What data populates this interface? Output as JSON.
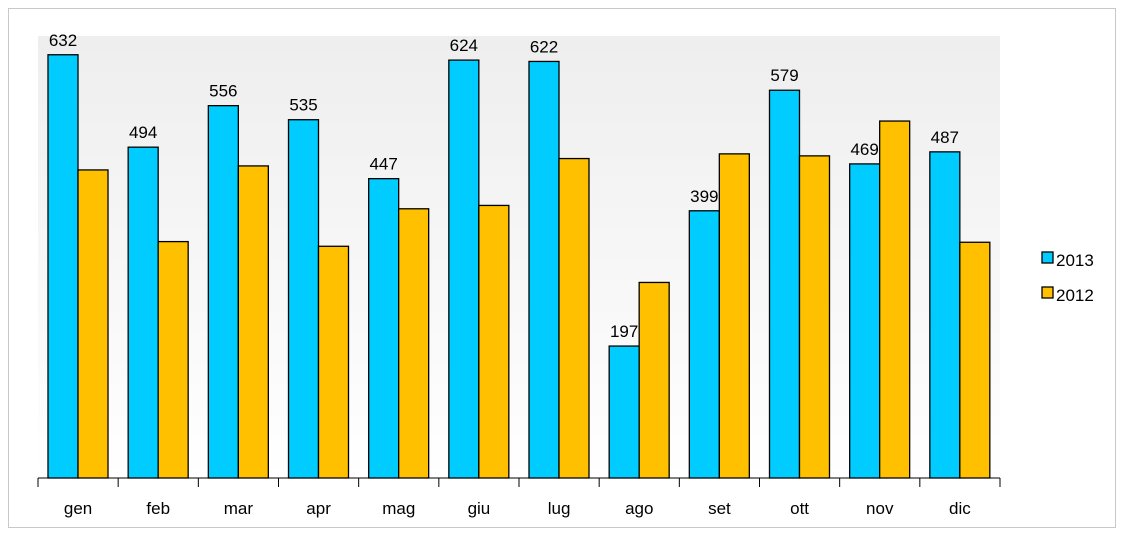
{
  "chart_data": {
    "type": "bar",
    "title": "",
    "xlabel": "",
    "ylabel": "",
    "ylim": [
      0,
      660
    ],
    "grid": false,
    "legend_position": "right",
    "categories": [
      "gen",
      "feb",
      "mar",
      "apr",
      "mag",
      "giu",
      "lug",
      "ago",
      "set",
      "ott",
      "nov",
      "dic"
    ],
    "series": [
      {
        "name": "2013",
        "color": "#00ccff",
        "values": [
          632,
          494,
          556,
          535,
          447,
          624,
          622,
          197,
          399,
          579,
          469,
          487
        ],
        "labels": [
          "632",
          "494",
          "556",
          "535",
          "447",
          "624",
          "622",
          "197",
          "399",
          "579",
          "469",
          "487"
        ]
      },
      {
        "name": "2012",
        "color": "#ffc000",
        "values": [
          460,
          353,
          466,
          346,
          402,
          407,
          477,
          292,
          484,
          481,
          533,
          352
        ]
      }
    ]
  },
  "colors": {
    "plot_background_top": "#eeeeee",
    "plot_background_bottom": "#ffffff",
    "border": "#c8c8c8"
  }
}
